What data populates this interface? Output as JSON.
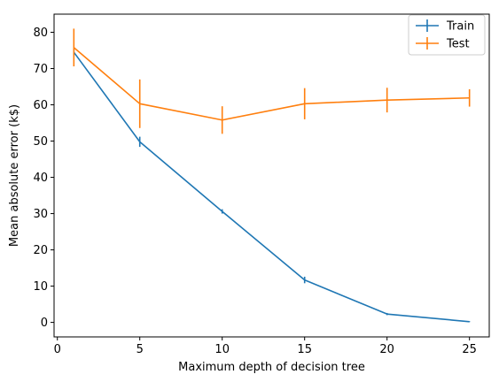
{
  "chart_data": {
    "type": "line",
    "title": "",
    "xlabel": "Maximum depth of decision tree",
    "ylabel": "Mean absolute error (k$)",
    "xlim": [
      -0.2,
      26.2
    ],
    "ylim": [
      -4,
      85
    ],
    "xticks": [
      0,
      5,
      10,
      15,
      20,
      25
    ],
    "yticks": [
      0,
      10,
      20,
      30,
      40,
      50,
      60,
      70,
      80
    ],
    "x": [
      1,
      5,
      10,
      15,
      20,
      25
    ],
    "grid": false,
    "legend_position": "top-right",
    "series": [
      {
        "name": "Train",
        "color": "#1f77b4",
        "values": [
          74.5,
          49.8,
          30.6,
          11.7,
          2.3,
          0.2
        ],
        "errors": [
          1.0,
          1.4,
          0.6,
          0.9,
          0.3,
          0.1
        ]
      },
      {
        "name": "Test",
        "color": "#ff7f0e",
        "values": [
          75.8,
          60.3,
          55.8,
          60.3,
          61.3,
          61.9
        ],
        "errors": [
          5.2,
          6.7,
          3.8,
          4.3,
          3.4,
          2.4
        ]
      }
    ]
  }
}
